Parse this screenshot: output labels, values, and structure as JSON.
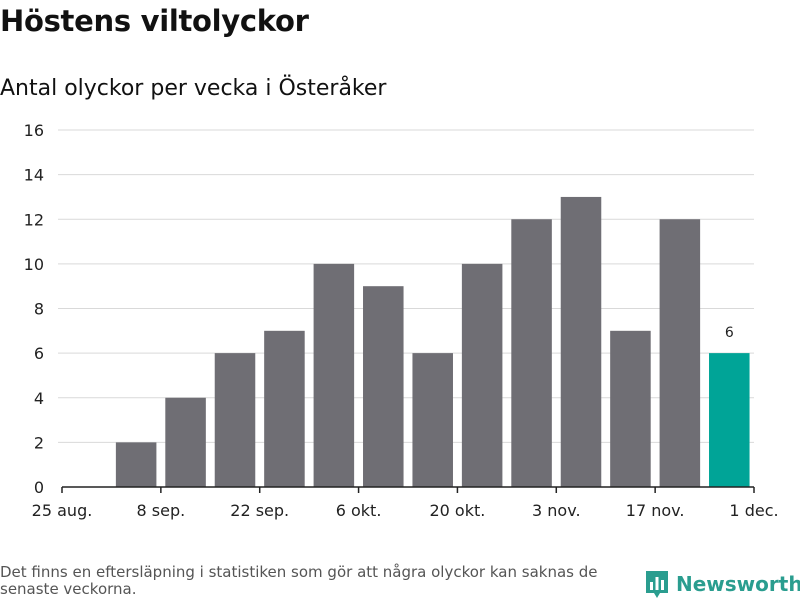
{
  "header": {
    "title": "Höstens viltolyckor",
    "subtitle": "Antal olyckor per vecka i Österåker"
  },
  "footer": {
    "note": "Det finns en eftersläpning i statistiken som gör att några olyckor kan saknas de senaste veckorna.",
    "brand": "Newsworthy"
  },
  "colors": {
    "bar": "#6f6e74",
    "highlight": "#00a497",
    "grid": "#d9d9d9",
    "axis": "#222222",
    "brand": "#2a9d8f"
  },
  "chart_data": {
    "type": "bar",
    "title": "Antal olyckor per vecka i Österåker",
    "xlabel": "",
    "ylabel": "",
    "ylim": [
      0,
      16
    ],
    "yticks": [
      0,
      2,
      4,
      6,
      8,
      10,
      12,
      14,
      16
    ],
    "grid": true,
    "x_axis": {
      "start": "2019-08-25",
      "end": "2019-12-01",
      "ticks": [
        {
          "date": "2019-08-25",
          "label": "25 aug."
        },
        {
          "date": "2019-09-08",
          "label": "8 sep."
        },
        {
          "date": "2019-09-22",
          "label": "22 sep."
        },
        {
          "date": "2019-10-06",
          "label": "6 okt."
        },
        {
          "date": "2019-10-20",
          "label": "20 okt."
        },
        {
          "date": "2019-11-03",
          "label": "3 nov."
        },
        {
          "date": "2019-11-17",
          "label": "17 nov."
        },
        {
          "date": "2019-12-01",
          "label": "1 dec."
        }
      ]
    },
    "categories": [
      "2019-09-01",
      "2019-09-08",
      "2019-09-15",
      "2019-09-22",
      "2019-09-29",
      "2019-10-06",
      "2019-10-13",
      "2019-10-20",
      "2019-10-27",
      "2019-11-03",
      "2019-11-10",
      "2019-11-17",
      "2019-11-24"
    ],
    "values": [
      2,
      4,
      6,
      7,
      10,
      9,
      6,
      10,
      12,
      13,
      7,
      12,
      6
    ],
    "highlight_index": 12,
    "data_labels": [
      {
        "index": 12,
        "text": "6"
      }
    ]
  }
}
